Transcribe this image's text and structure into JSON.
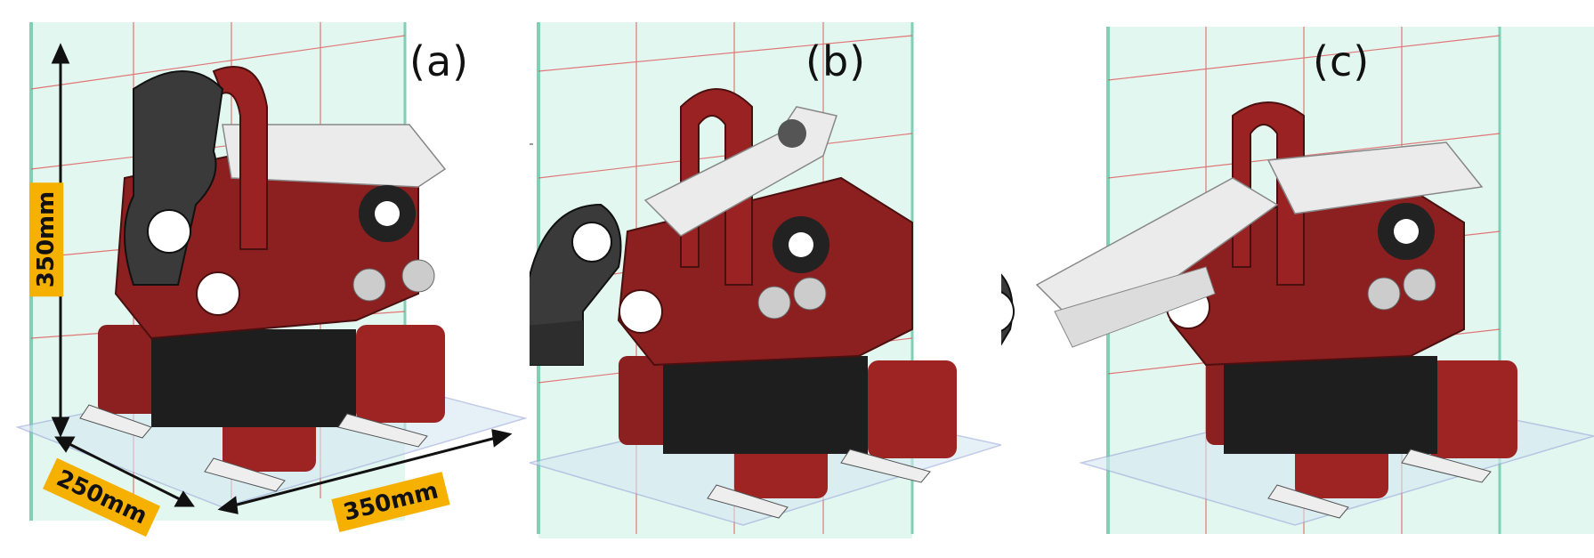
{
  "figure": {
    "panels": [
      {
        "label": "(a)",
        "pose": "arm-folded-up"
      },
      {
        "label": "(b)",
        "pose": "arm-partially-extended"
      },
      {
        "label": "(c)",
        "pose": "arm-fully-extended"
      }
    ],
    "dimensions": {
      "height": "350mm",
      "depth": "250mm",
      "width": "350mm"
    },
    "colors": {
      "body": "#8c1f1f",
      "body_dark": "#5a1212",
      "arm_white": "#e9e9e9",
      "gripper": "#3a3a3a",
      "frame": "#222222",
      "glass": "#c9efe3",
      "glass_edge": "#7fd0b4",
      "grid": "#e05858",
      "dim_tag": "#f6b100"
    }
  }
}
